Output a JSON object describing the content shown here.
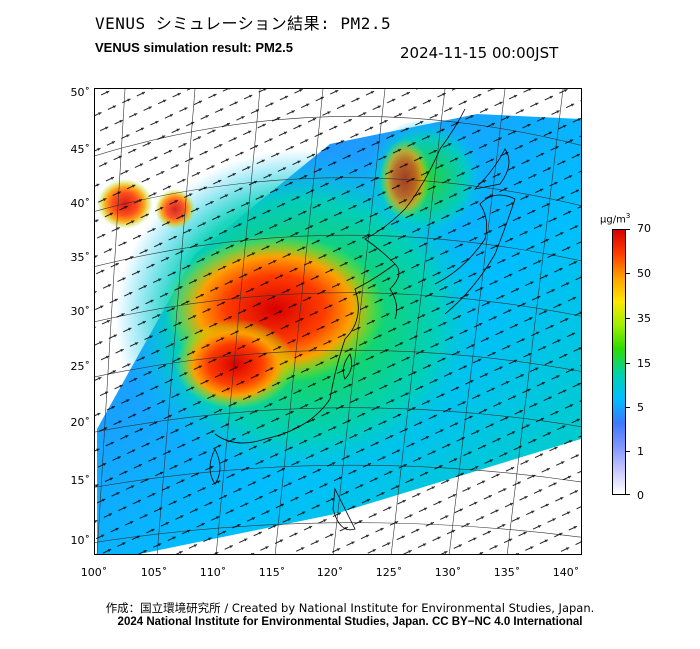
{
  "header": {
    "title_jp": "VENUS シミュレーション結果: PM2.5",
    "title_en": "VENUS simulation result: PM2.5",
    "timestamp": "2024-11-15 00:00JST"
  },
  "map": {
    "lat_labels": [
      "50˚",
      "45˚",
      "40˚",
      "35˚",
      "30˚",
      "25˚",
      "20˚",
      "15˚",
      "10˚"
    ],
    "lon_labels": [
      "100˚",
      "105˚",
      "110˚",
      "115˚",
      "120˚",
      "125˚",
      "130˚",
      "135˚",
      "140˚"
    ],
    "lat_values": [
      50,
      45,
      40,
      35,
      30,
      25,
      20,
      15,
      10
    ],
    "lon_values": [
      100,
      105,
      110,
      115,
      120,
      125,
      130,
      135,
      140
    ]
  },
  "colorbar": {
    "unit": "μg/m",
    "unit_sup": "3",
    "labels": [
      "70",
      "50",
      "35",
      "15",
      "5",
      "1",
      "0"
    ],
    "colors": [
      "#d70000",
      "#ff3c00",
      "#ffa000",
      "#ffe600",
      "#a0f000",
      "#2ddc00",
      "#00d2b4",
      "#00beff",
      "#3c78ff",
      "#7f96ff",
      "#c8c8ff",
      "#ffffff"
    ]
  },
  "footer": {
    "credit_jp": "作成：国立環境研究所 / Created by National Institute for Environmental Studies, Japan.",
    "credit_en": "2024 National Institute for Environmental Studies, Japan. CC BY−NC 4.0 International"
  }
}
